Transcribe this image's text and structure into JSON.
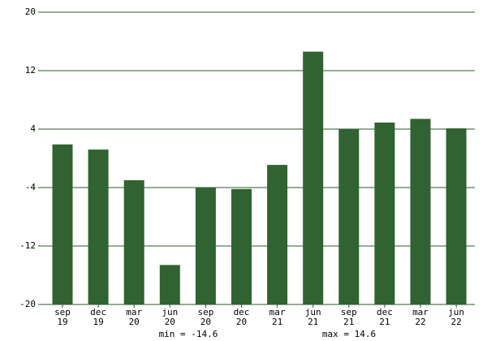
{
  "chart_data": {
    "type": "bar",
    "categories": [
      [
        "sep",
        "19"
      ],
      [
        "dec",
        "19"
      ],
      [
        "mar",
        "20"
      ],
      [
        "jun",
        "20"
      ],
      [
        "sep",
        "20"
      ],
      [
        "dec",
        "20"
      ],
      [
        "mar",
        "21"
      ],
      [
        "jun",
        "21"
      ],
      [
        "sep",
        "21"
      ],
      [
        "dec",
        "21"
      ],
      [
        "mar",
        "22"
      ],
      [
        "jun",
        "22"
      ]
    ],
    "values": [
      1.9,
      1.2,
      -3.0,
      -14.6,
      -4.0,
      -4.2,
      -0.9,
      14.6,
      4.0,
      4.9,
      5.4,
      4.1
    ],
    "color": "#316231",
    "ylim": [
      -20,
      20
    ],
    "yticks": [
      -20,
      -12,
      -4,
      4,
      12,
      20
    ],
    "grid": true,
    "annotations": [
      "min = -14.6",
      "max = 14.6"
    ]
  }
}
